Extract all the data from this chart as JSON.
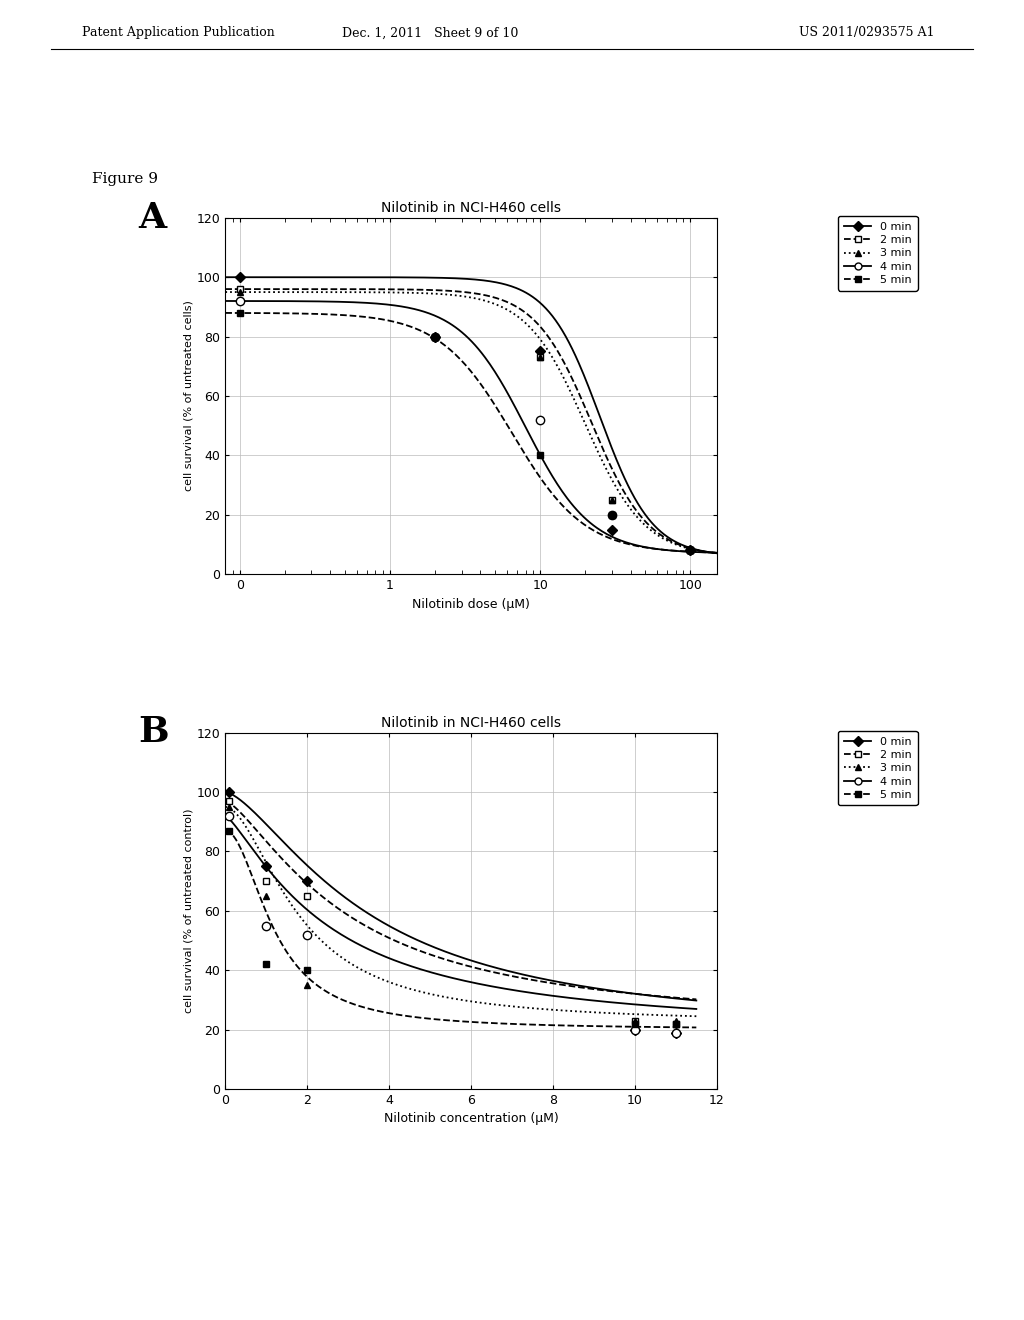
{
  "page_header_left": "Patent Application Publication",
  "page_header_mid": "Dec. 1, 2011   Sheet 9 of 10",
  "page_header_right": "US 2011/0293575 A1",
  "figure_label": "Figure 9",
  "panel_A": {
    "title": "Nilotinib in NCI-H460 cells",
    "xlabel": "Nilotinib dose (μM)",
    "ylabel": "cell survival (% of untreated cells)",
    "ylim": [
      0,
      120
    ],
    "yticks": [
      0,
      20,
      40,
      60,
      80,
      100,
      120
    ],
    "series": {
      "0 min": {
        "marker_x": [
          0.1,
          2.0,
          10.0,
          30.0,
          100.0
        ],
        "marker_y": [
          100,
          80,
          75,
          15,
          8
        ],
        "color": "#000000",
        "linestyle": "-",
        "marker": "D",
        "markersize": 5,
        "markerfacecolor": "#000000",
        "ec50": 25.0,
        "hill": 2.5,
        "top": 100,
        "bottom": 6
      },
      "2 min": {
        "marker_x": [
          0.1,
          2.0,
          10.0,
          30.0,
          100.0
        ],
        "marker_y": [
          96,
          80,
          73,
          25,
          8
        ],
        "color": "#000000",
        "linestyle": "--",
        "marker": "s",
        "markersize": 5,
        "markerfacecolor": "#ffffff",
        "ec50": 22.0,
        "hill": 2.3,
        "top": 96,
        "bottom": 6
      },
      "3 min": {
        "marker_x": [
          0.1,
          2.0,
          10.0,
          30.0,
          100.0
        ],
        "marker_y": [
          95,
          80,
          73,
          25,
          8
        ],
        "color": "#000000",
        "linestyle": ":",
        "marker": "^",
        "markersize": 5,
        "markerfacecolor": "#000000",
        "ec50": 20.0,
        "hill": 2.2,
        "top": 95,
        "bottom": 6
      },
      "4 min": {
        "marker_x": [
          0.1,
          2.0,
          10.0,
          30.0,
          100.0
        ],
        "marker_y": [
          92,
          80,
          52,
          20,
          8
        ],
        "color": "#000000",
        "linestyle": "-",
        "marker": "o",
        "markersize": 6,
        "markerfacecolor": "#ffffff",
        "ec50": 8.0,
        "hill": 2.0,
        "top": 92,
        "bottom": 7
      },
      "5 min": {
        "marker_x": [
          0.1,
          2.0,
          10.0,
          30.0,
          100.0
        ],
        "marker_y": [
          88,
          80,
          40,
          20,
          8
        ],
        "color": "#000000",
        "linestyle": "--",
        "marker": "s",
        "markersize": 5,
        "markerfacecolor": "#000000",
        "ec50": 6.5,
        "hill": 1.8,
        "top": 88,
        "bottom": 7
      }
    }
  },
  "panel_B": {
    "title": "Nilotinib in NCI-H460 cells",
    "xlabel": "Nilotinib concentration (μM)",
    "ylabel": "cell survival (% of untreated control)",
    "xlim": [
      0,
      12
    ],
    "xticks": [
      0,
      2,
      4,
      6,
      8,
      10,
      12
    ],
    "ylim": [
      0,
      120
    ],
    "yticks": [
      0,
      20,
      40,
      60,
      80,
      100,
      120
    ],
    "series": {
      "0 min": {
        "marker_x": [
          0.1,
          1.0,
          2.0,
          10.0,
          11.0
        ],
        "marker_y": [
          100,
          75,
          70,
          20,
          19
        ],
        "color": "#000000",
        "linestyle": "-",
        "marker": "D",
        "markersize": 5,
        "markerfacecolor": "#000000",
        "ec50": 3.5,
        "hill": 1.5,
        "top": 100,
        "bottom": 18
      },
      "2 min": {
        "marker_x": [
          0.1,
          1.0,
          2.0,
          10.0,
          11.0
        ],
        "marker_y": [
          97,
          70,
          65,
          23,
          22
        ],
        "color": "#000000",
        "linestyle": "--",
        "marker": "s",
        "markersize": 5,
        "markerfacecolor": "#ffffff",
        "ec50": 3.0,
        "hill": 1.4,
        "top": 97,
        "bottom": 20
      },
      "3 min": {
        "marker_x": [
          0.1,
          1.0,
          2.0,
          10.0,
          11.0
        ],
        "marker_y": [
          95,
          65,
          35,
          23,
          23
        ],
        "color": "#000000",
        "linestyle": ":",
        "marker": "^",
        "markersize": 5,
        "markerfacecolor": "#000000",
        "ec50": 1.8,
        "hill": 1.8,
        "top": 95,
        "bottom": 22
      },
      "4 min": {
        "marker_x": [
          0.1,
          1.0,
          2.0,
          10.0,
          11.0
        ],
        "marker_y": [
          92,
          55,
          52,
          20,
          19
        ],
        "color": "#000000",
        "linestyle": "-",
        "marker": "o",
        "markersize": 6,
        "markerfacecolor": "#ffffff",
        "ec50": 2.5,
        "hill": 1.3,
        "top": 92,
        "bottom": 18
      },
      "5 min": {
        "marker_x": [
          0.1,
          1.0,
          2.0,
          10.0,
          11.0
        ],
        "marker_y": [
          87,
          42,
          40,
          22,
          22
        ],
        "color": "#000000",
        "linestyle": "--",
        "marker": "s",
        "markersize": 5,
        "markerfacecolor": "#000000",
        "ec50": 1.2,
        "hill": 2.0,
        "top": 87,
        "bottom": 20
      }
    }
  }
}
